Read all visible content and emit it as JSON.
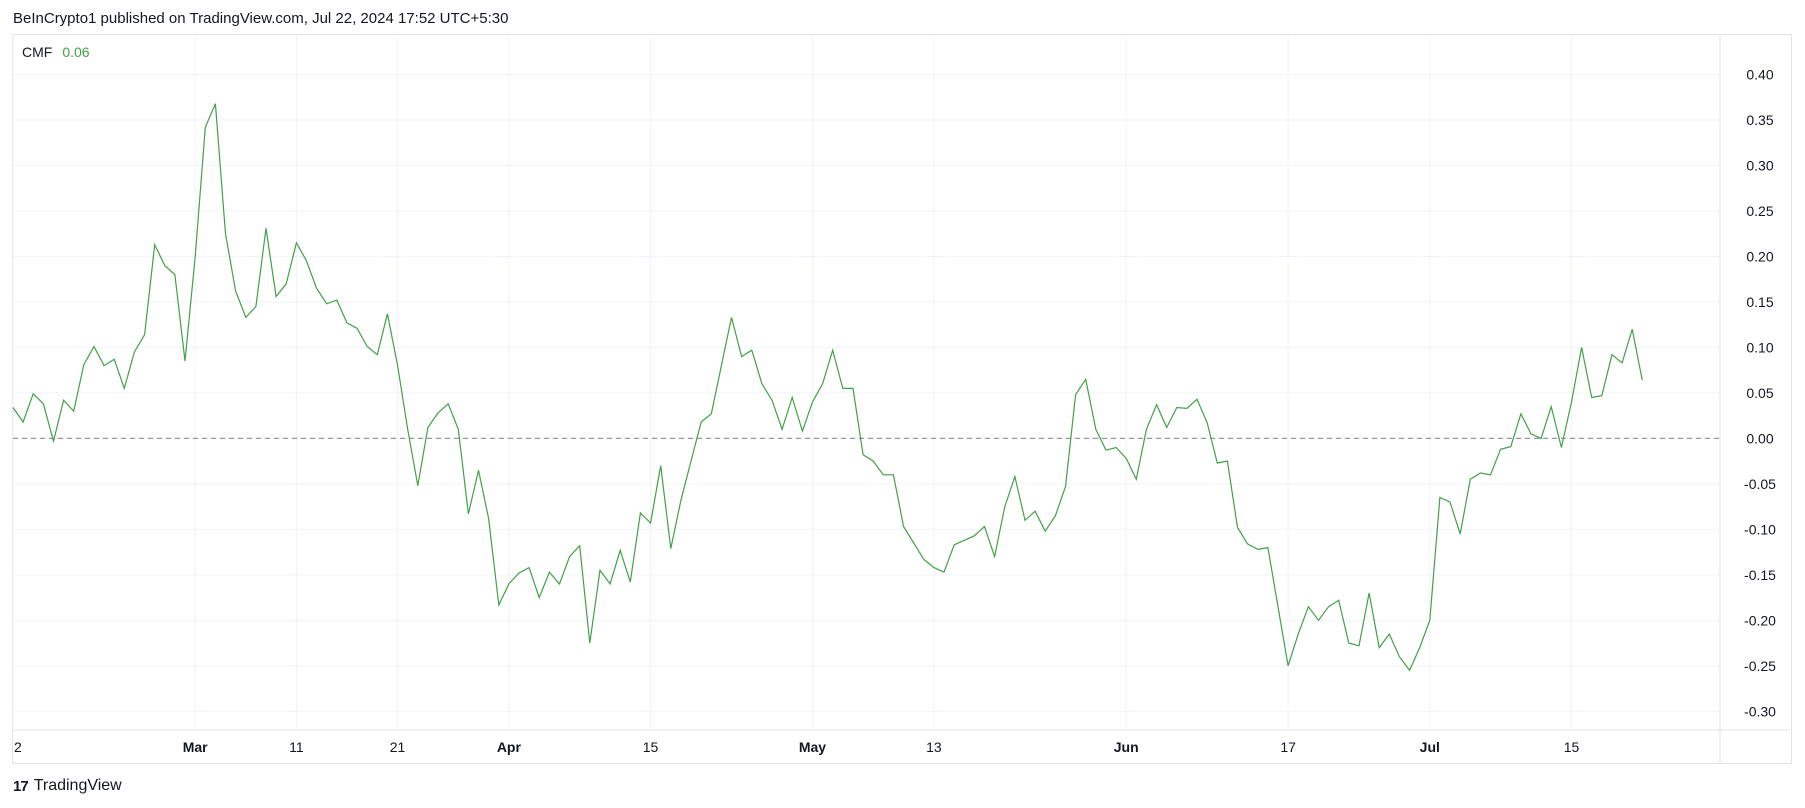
{
  "header": {
    "text": "BeInCrypto1 published on TradingView.com, Jul 22, 2024 17:52 UTC+5:30"
  },
  "legend": {
    "name": "CMF",
    "value": "0.06"
  },
  "footer": {
    "logo_glyph": "17",
    "brand": "TradingView"
  },
  "colors": {
    "line": "#43a047",
    "grid": "#f0f3fa",
    "zero": "#9598a1",
    "border": "#e0e3eb"
  },
  "chart_data": {
    "type": "line",
    "title": "",
    "xlabel": "",
    "ylabel": "",
    "ylim": [
      -0.33,
      0.44
    ],
    "y_ticks": [
      0.4,
      0.35,
      0.3,
      0.25,
      0.2,
      0.15,
      0.1,
      0.05,
      0.0,
      -0.05,
      -0.1,
      -0.15,
      -0.2,
      -0.25,
      -0.3
    ],
    "y_tick_labels": [
      "0.40",
      "0.35",
      "0.30",
      "0.25",
      "0.20",
      "0.15",
      "0.10",
      "0.05",
      "0.00",
      "-0.05",
      "-0.10",
      "-0.15",
      "-0.20",
      "-0.25",
      "-0.30"
    ],
    "x_tick_labels": [
      {
        "label": "2",
        "index": 0,
        "bold": false
      },
      {
        "label": "Mar",
        "index": 18,
        "bold": true
      },
      {
        "label": "11",
        "index": 28,
        "bold": false
      },
      {
        "label": "21",
        "index": 38,
        "bold": false
      },
      {
        "label": "Apr",
        "index": 49,
        "bold": true
      },
      {
        "label": "15",
        "index": 63,
        "bold": false
      },
      {
        "label": "May",
        "index": 79,
        "bold": true
      },
      {
        "label": "13",
        "index": 91,
        "bold": false
      },
      {
        "label": "Jun",
        "index": 110,
        "bold": true
      },
      {
        "label": "17",
        "index": 126,
        "bold": false
      },
      {
        "label": "Jul",
        "index": 140,
        "bold": true
      },
      {
        "label": "15",
        "index": 154,
        "bold": false
      }
    ],
    "grid": true,
    "zero_line": true,
    "series": [
      {
        "values": [
          0.034,
          0.018,
          0.049,
          0.038,
          -0.003,
          0.042,
          0.03,
          0.081,
          0.101,
          0.08,
          0.087,
          0.055,
          0.095,
          0.114,
          0.213,
          0.19,
          0.18,
          0.085,
          0.2,
          0.342,
          0.368,
          0.225,
          0.162,
          0.133,
          0.145,
          0.231,
          0.156,
          0.17,
          0.215,
          0.195,
          0.165,
          0.148,
          0.152,
          0.127,
          0.121,
          0.101,
          0.092,
          0.137,
          0.08,
          0.01,
          -0.052,
          0.012,
          0.028,
          0.038,
          0.01,
          -0.083,
          -0.035,
          -0.088,
          -0.183,
          -0.16,
          -0.148,
          -0.142,
          -0.175,
          -0.147,
          -0.16,
          -0.13,
          -0.118,
          -0.225,
          -0.145,
          -0.16,
          -0.123,
          -0.158,
          -0.082,
          -0.093,
          -0.03,
          -0.121,
          -0.068,
          -0.025,
          0.018,
          0.027,
          0.08,
          0.133,
          0.09,
          0.097,
          0.06,
          0.042,
          0.01,
          0.045,
          0.008,
          0.04,
          0.06,
          0.097,
          0.055,
          0.055,
          -0.018,
          -0.025,
          -0.04,
          -0.04,
          -0.097,
          -0.115,
          -0.133,
          -0.142,
          -0.147,
          -0.117,
          -0.112,
          -0.107,
          -0.097,
          -0.13,
          -0.075,
          -0.042,
          -0.09,
          -0.08,
          -0.102,
          -0.085,
          -0.053,
          0.048,
          0.065,
          0.01,
          -0.013,
          -0.01,
          -0.022,
          -0.045,
          0.01,
          0.037,
          0.012,
          0.034,
          0.033,
          0.043,
          0.017,
          -0.027,
          -0.025,
          -0.098,
          -0.116,
          -0.122,
          -0.12,
          -0.185,
          -0.25,
          -0.215,
          -0.185,
          -0.2,
          -0.185,
          -0.178,
          -0.225,
          -0.228,
          -0.17,
          -0.23,
          -0.215,
          -0.24,
          -0.255,
          -0.23,
          -0.2,
          -0.065,
          -0.07,
          -0.105,
          -0.045,
          -0.038,
          -0.04,
          -0.012,
          -0.009,
          0.027,
          0.005,
          0.0,
          0.035,
          -0.01,
          0.04,
          0.1,
          0.045,
          0.047,
          0.092,
          0.083,
          0.12,
          0.064
        ]
      }
    ]
  }
}
